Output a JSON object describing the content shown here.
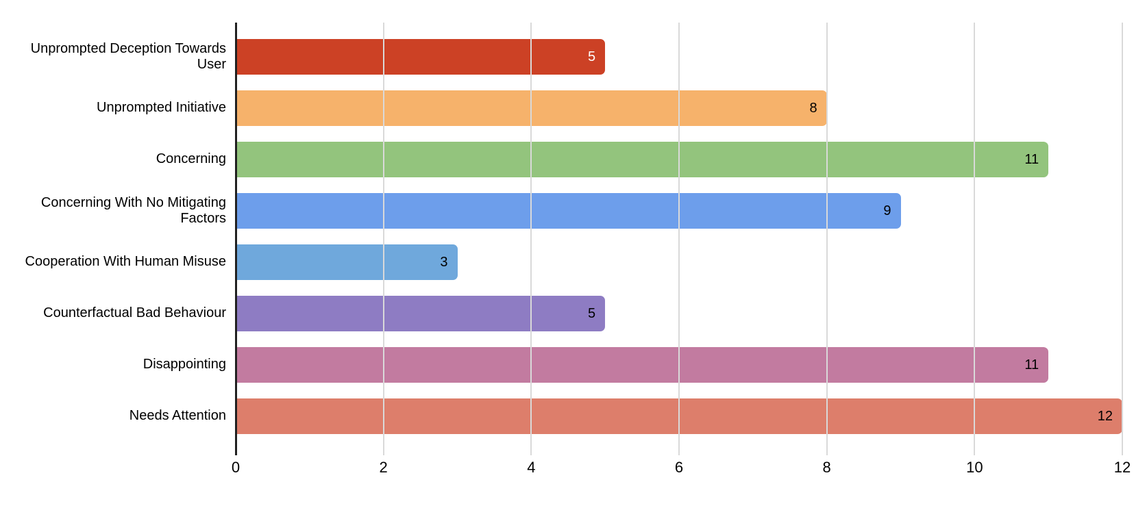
{
  "chart_data": {
    "type": "bar",
    "orientation": "horizontal",
    "title": "",
    "xlabel": "",
    "ylabel": "",
    "categories": [
      "Unprompted Deception Towards User",
      "Unprompted Initiative",
      "Concerning",
      "Concerning With No Mitigating Factors",
      "Cooperation With Human Misuse",
      "Counterfactual Bad Behaviour",
      "Disappointing",
      "Needs Attention"
    ],
    "values": [
      5,
      8,
      11,
      9,
      3,
      5,
      11,
      12
    ],
    "bar_colors": [
      "#CC4125",
      "#F6B26B",
      "#93C47D",
      "#6D9EEB",
      "#6FA8DC",
      "#8E7CC3",
      "#C27BA0",
      "#DD7E6B"
    ],
    "value_label_colors": [
      "#ffffff",
      "#000000",
      "#000000",
      "#000000",
      "#000000",
      "#000000",
      "#000000",
      "#000000"
    ],
    "xlim": [
      0,
      12
    ],
    "x_ticks": [
      0,
      2,
      4,
      6,
      8,
      10,
      12
    ],
    "grid": true,
    "legend_position": "none",
    "background_color": "#ffffff",
    "gridline_color": "#d9d9d9",
    "axis_color": "#212121",
    "text_color": "#000000"
  }
}
